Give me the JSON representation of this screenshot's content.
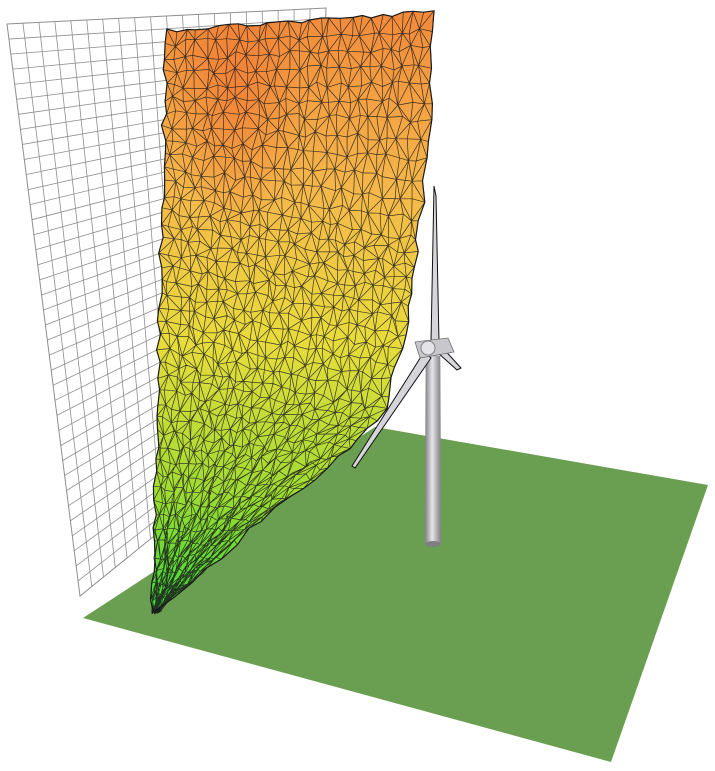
{
  "scene": {
    "ground_color": "#6a9e50",
    "grid_line_color": "#8e8e8e",
    "grid_background": "#ffffff",
    "grid_columns": 20,
    "grid_rows": 38,
    "mesh_line_color": "#1a1a1a",
    "mesh_gradient": {
      "top": "#f28a3c",
      "upper_middle": "#f5b84a",
      "middle": "#e8dc3c",
      "lower": "#9fdc32",
      "bottom": "#38d838"
    },
    "mesh_columns": 26,
    "mesh_rows": 42,
    "turbine_color": "#c8c8cc",
    "turbine_shadow": "#7d7d82",
    "blade_color": "#d6d6da",
    "blade_outline": "#111111",
    "icons": [
      "wire-grid-icon",
      "wind-field-mesh-icon",
      "wind-turbine-icon",
      "ground-plane-icon"
    ]
  }
}
